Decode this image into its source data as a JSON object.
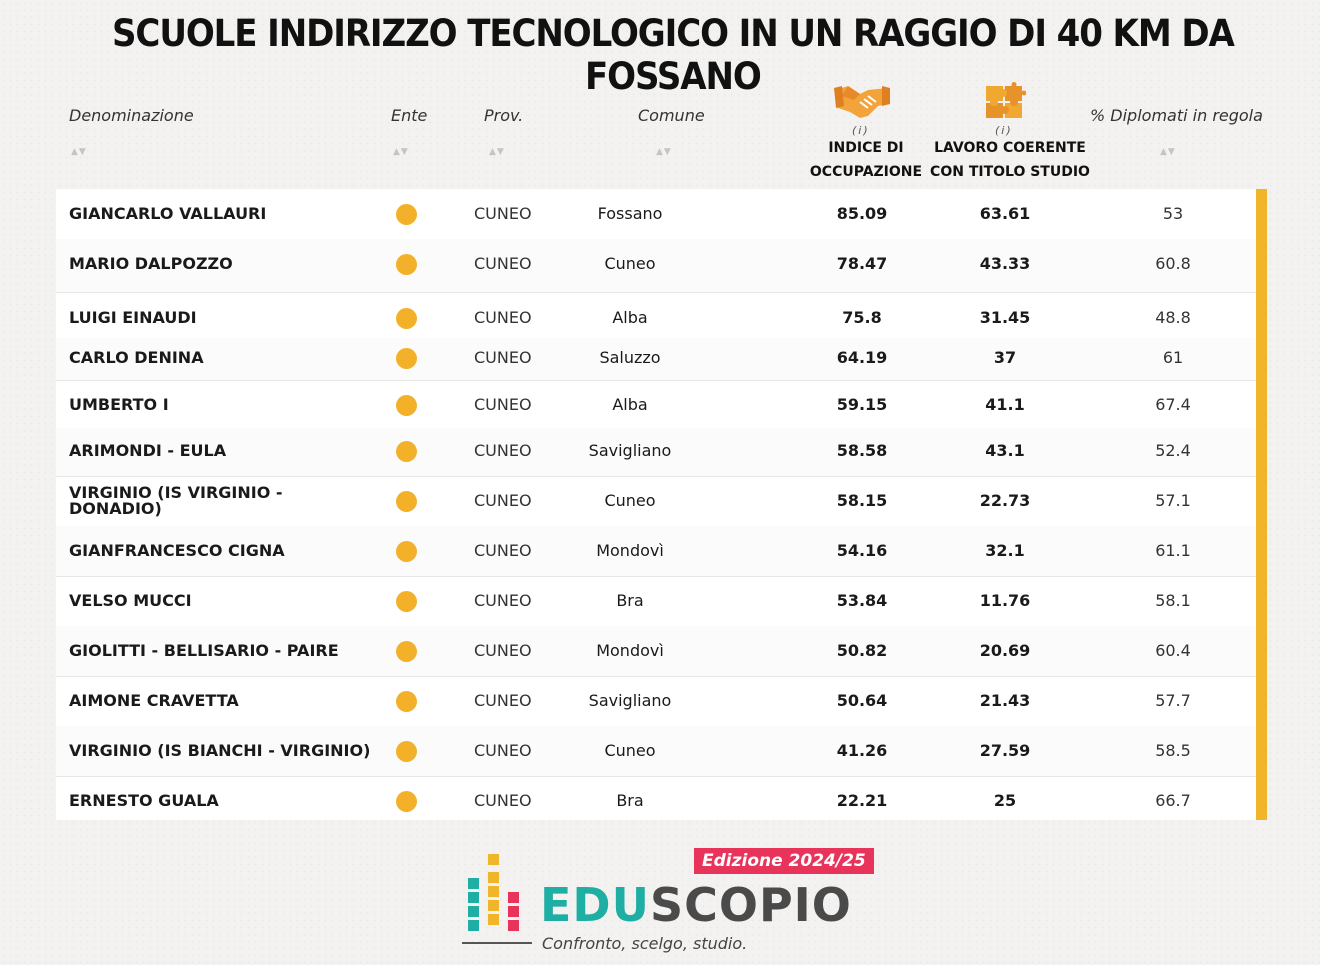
{
  "title": "SCUOLE INDIRIZZO TECNOLOGICO IN UN RAGGIO DI 40 KM DA FOSSANO",
  "columns": {
    "name": "Denominazione",
    "ente": "Ente",
    "prov": "Prov.",
    "comune": "Comune",
    "occupazione_line1": "INDICE DI",
    "occupazione_line2": "OCCUPAZIONE",
    "lavoro_line1": "LAVORO COERENTE",
    "lavoro_line2": "CON TITOLO STUDIO",
    "diplomati": "% Diplomati in regola",
    "info_marker": "(i)",
    "sort_icon": "sort-arrows-icon",
    "occupazione_icon": "handshake-icon",
    "lavoro_icon": "puzzle-icon"
  },
  "rows": [
    {
      "name": "GIANCARLO VALLAURI",
      "prov": "CUNEO",
      "comune": "Fossano",
      "occupazione": "85.09",
      "lavoro": "63.61",
      "diplomati": "53"
    },
    {
      "name": "MARIO DALPOZZO",
      "prov": "CUNEO",
      "comune": "Cuneo",
      "occupazione": "78.47",
      "lavoro": "43.33",
      "diplomati": "60.8"
    },
    {
      "name": "LUIGI EINAUDI",
      "prov": "CUNEO",
      "comune": "Alba",
      "occupazione": "75.8",
      "lavoro": "31.45",
      "diplomati": "48.8"
    },
    {
      "name": "CARLO DENINA",
      "prov": "CUNEO",
      "comune": "Saluzzo",
      "occupazione": "64.19",
      "lavoro": "37",
      "diplomati": "61"
    },
    {
      "name": "UMBERTO I",
      "prov": "CUNEO",
      "comune": "Alba",
      "occupazione": "59.15",
      "lavoro": "41.1",
      "diplomati": "67.4"
    },
    {
      "name": "ARIMONDI - EULA",
      "prov": "CUNEO",
      "comune": "Savigliano",
      "occupazione": "58.58",
      "lavoro": "43.1",
      "diplomati": "52.4"
    },
    {
      "name": "VIRGINIO (IS VIRGINIO - DONADIO)",
      "prov": "CUNEO",
      "comune": "Cuneo",
      "occupazione": "58.15",
      "lavoro": "22.73",
      "diplomati": "57.1"
    },
    {
      "name": "GIANFRANCESCO CIGNA",
      "prov": "CUNEO",
      "comune": "Mondovì",
      "occupazione": "54.16",
      "lavoro": "32.1",
      "diplomati": "61.1"
    },
    {
      "name": "VELSO MUCCI",
      "prov": "CUNEO",
      "comune": "Bra",
      "occupazione": "53.84",
      "lavoro": "11.76",
      "diplomati": "58.1"
    },
    {
      "name": "GIOLITTI - BELLISARIO - PAIRE",
      "prov": "CUNEO",
      "comune": "Mondovì",
      "occupazione": "50.82",
      "lavoro": "20.69",
      "diplomati": "60.4"
    },
    {
      "name": "AIMONE CRAVETTA",
      "prov": "CUNEO",
      "comune": "Savigliano",
      "occupazione": "50.64",
      "lavoro": "21.43",
      "diplomati": "57.7"
    },
    {
      "name": "VIRGINIO (IS BIANCHI - VIRGINIO)",
      "prov": "CUNEO",
      "comune": "Cuneo",
      "occupazione": "41.26",
      "lavoro": "27.59",
      "diplomati": "58.5"
    },
    {
      "name": "ERNESTO GUALA",
      "prov": "CUNEO",
      "comune": "Bra",
      "occupazione": "22.21",
      "lavoro": "25",
      "diplomati": "66.7"
    }
  ],
  "ente_dot_color": "#f3b12a",
  "accent_color": "#f1b52a",
  "footer": {
    "edition": "Edizione 2024/25",
    "brand_part1": "EDU",
    "brand_part2": "SCOPIO",
    "tagline": "Confronto, scelgo, studio.",
    "logo_icon": "eduscopio-bars-logo-icon"
  }
}
